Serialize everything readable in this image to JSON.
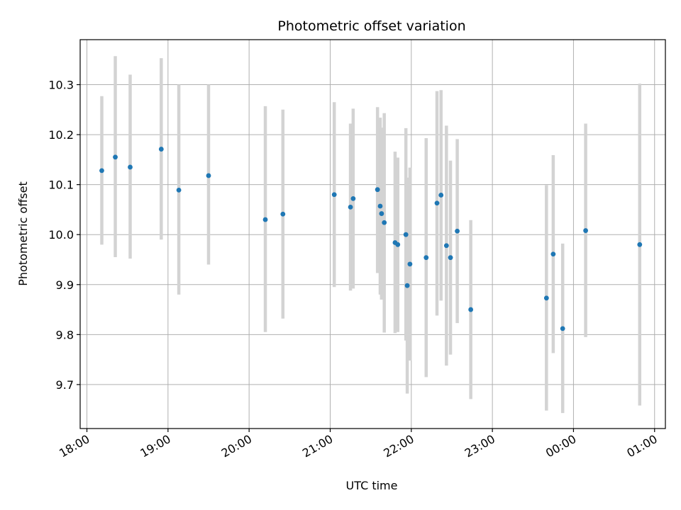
{
  "chart_data": {
    "type": "scatter",
    "title": "Photometric offset variation",
    "xlabel": "UTC time",
    "ylabel": "Photometric offset",
    "xlim": [
      "17:55",
      "01:08"
    ],
    "ylim": [
      9.612,
      10.39
    ],
    "x_ticks": [
      "18:00",
      "19:00",
      "20:00",
      "21:00",
      "22:00",
      "23:00",
      "00:00",
      "01:00"
    ],
    "y_ticks": [
      9.7,
      9.8,
      9.9,
      10.0,
      10.1,
      10.2,
      10.3
    ],
    "grid": true,
    "colors": {
      "points": "#1f77b4",
      "error_bars": "#d3d3d3"
    },
    "points": [
      {
        "t": "18:11",
        "y": 10.128,
        "lo": 9.98,
        "hi": 10.277
      },
      {
        "t": "18:21",
        "y": 10.155,
        "lo": 9.955,
        "hi": 10.357
      },
      {
        "t": "18:32",
        "y": 10.135,
        "lo": 9.952,
        "hi": 10.32
      },
      {
        "t": "18:55",
        "y": 10.171,
        "lo": 9.99,
        "hi": 10.353
      },
      {
        "t": "19:08",
        "y": 10.089,
        "lo": 9.88,
        "hi": 10.3
      },
      {
        "t": "19:30",
        "y": 10.118,
        "lo": 9.94,
        "hi": 10.3
      },
      {
        "t": "20:12",
        "y": 10.03,
        "lo": 9.805,
        "hi": 10.257
      },
      {
        "t": "20:25",
        "y": 10.041,
        "lo": 9.832,
        "hi": 10.25
      },
      {
        "t": "21:03",
        "y": 10.08,
        "lo": 9.895,
        "hi": 10.265
      },
      {
        "t": "21:15",
        "y": 10.055,
        "lo": 9.888,
        "hi": 10.222
      },
      {
        "t": "21:17",
        "y": 10.072,
        "lo": 9.892,
        "hi": 10.252
      },
      {
        "t": "21:35",
        "y": 10.09,
        "lo": 9.923,
        "hi": 10.255
      },
      {
        "t": "21:37",
        "y": 10.057,
        "lo": 9.88,
        "hi": 10.234
      },
      {
        "t": "21:38",
        "y": 10.042,
        "lo": 9.87,
        "hi": 10.214
      },
      {
        "t": "21:40",
        "y": 10.024,
        "lo": 9.804,
        "hi": 10.243
      },
      {
        "t": "21:48",
        "y": 9.984,
        "lo": 9.803,
        "hi": 10.166
      },
      {
        "t": "21:50",
        "y": 9.98,
        "lo": 9.805,
        "hi": 10.154
      },
      {
        "t": "21:56",
        "y": 10.0,
        "lo": 9.788,
        "hi": 10.213
      },
      {
        "t": "21:57",
        "y": 9.898,
        "lo": 9.682,
        "hi": 10.114
      },
      {
        "t": "21:59",
        "y": 9.941,
        "lo": 9.748,
        "hi": 10.134
      },
      {
        "t": "22:11",
        "y": 9.954,
        "lo": 9.715,
        "hi": 10.193
      },
      {
        "t": "22:19",
        "y": 10.063,
        "lo": 9.838,
        "hi": 10.287
      },
      {
        "t": "22:22",
        "y": 10.079,
        "lo": 9.868,
        "hi": 10.289
      },
      {
        "t": "22:26",
        "y": 9.978,
        "lo": 9.738,
        "hi": 10.218
      },
      {
        "t": "22:29",
        "y": 9.954,
        "lo": 9.76,
        "hi": 10.148
      },
      {
        "t": "22:34",
        "y": 10.007,
        "lo": 9.823,
        "hi": 10.191
      },
      {
        "t": "22:44",
        "y": 9.85,
        "lo": 9.671,
        "hi": 10.029
      },
      {
        "t": "23:40",
        "y": 9.873,
        "lo": 9.648,
        "hi": 10.099
      },
      {
        "t": "23:45",
        "y": 9.961,
        "lo": 9.763,
        "hi": 10.159
      },
      {
        "t": "23:52",
        "y": 9.812,
        "lo": 9.643,
        "hi": 9.982
      },
      {
        "t": "00:09",
        "y": 10.008,
        "lo": 9.795,
        "hi": 10.222
      },
      {
        "t": "00:49",
        "y": 9.98,
        "lo": 9.658,
        "hi": 10.302
      }
    ]
  }
}
